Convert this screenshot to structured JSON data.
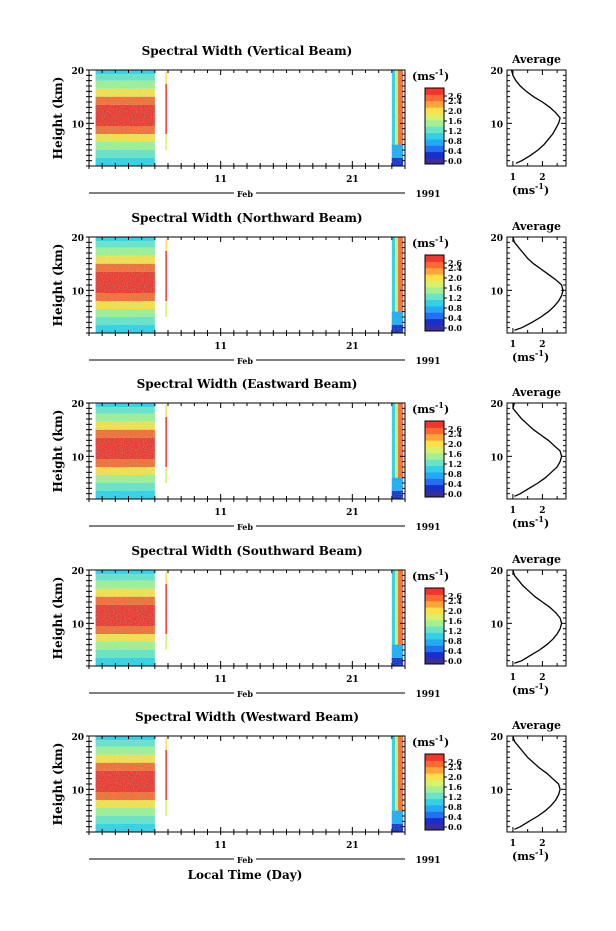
{
  "chart_data": {
    "type": "heatmap",
    "xlabel": "Local Time (Day)",
    "time_axis": {
      "month_label": "Feb",
      "year_label": "1991",
      "tick_labels": [
        "11",
        "21"
      ],
      "day_range": [
        1,
        25
      ],
      "data_blocks": [
        {
          "start_day": 1.5,
          "end_day": 6.0
        },
        {
          "start_day": 6.8,
          "end_day": 6.9
        },
        {
          "start_day": 24.0,
          "end_day": 25.0
        }
      ]
    },
    "height_axis": {
      "label": "Height (km)",
      "range": [
        2,
        20
      ],
      "tick_labels": [
        "20",
        "10"
      ]
    },
    "colorbar": {
      "unit": "(ms",
      "unit_exp": "-1",
      "unit_close": ")",
      "tick_labels": [
        "2.6",
        "2.4",
        "2.0",
        "1.6",
        "1.2",
        "0.8",
        "0.4",
        "0.0"
      ],
      "range": [
        0.0,
        2.8
      ],
      "colors": [
        "#3a2f9a",
        "#1c2ec9",
        "#2570f0",
        "#24a9f5",
        "#33d0e8",
        "#6ce3c8",
        "#a4ef95",
        "#d8f06a",
        "#fbe04a",
        "#fda53a",
        "#fb6a32",
        "#f2362e"
      ]
    },
    "panels": [
      {
        "title": "Spectral Width (Vertical Beam)",
        "profile_title": "Average",
        "profile_xlabel": "(ms",
        "profile_xtick_labels": [
          "1",
          "2"
        ],
        "profile_xrange": [
          0.8,
          2.8
        ],
        "profile_heights": [
          2.5,
          3,
          4,
          5,
          6,
          7,
          8,
          9,
          10,
          11,
          12,
          13,
          14,
          15,
          16,
          17,
          18,
          19,
          20
        ],
        "profile_values": [
          1.1,
          1.3,
          1.6,
          1.85,
          2.05,
          2.2,
          2.35,
          2.45,
          2.55,
          2.6,
          2.45,
          2.25,
          2.0,
          1.7,
          1.45,
          1.25,
          1.1,
          1.0,
          0.95
        ]
      },
      {
        "title": "Spectral Width (Northward Beam)",
        "profile_title": "Average",
        "profile_xlabel": "(ms",
        "profile_xtick_labels": [
          "1",
          "2"
        ],
        "profile_xrange": [
          0.8,
          2.8
        ],
        "profile_heights": [
          2.5,
          3,
          4,
          5,
          6,
          7,
          8,
          9,
          10,
          11,
          12,
          13,
          14,
          15,
          16,
          17,
          18,
          19,
          20
        ],
        "profile_values": [
          1.05,
          1.3,
          1.65,
          1.95,
          2.2,
          2.4,
          2.55,
          2.65,
          2.7,
          2.65,
          2.45,
          2.2,
          1.95,
          1.7,
          1.5,
          1.35,
          1.2,
          1.05,
          1.0
        ]
      },
      {
        "title": "Spectral Width (Eastward Beam)",
        "profile_title": "Average",
        "profile_xlabel": "(ms",
        "profile_xtick_labels": [
          "1",
          "2"
        ],
        "profile_xrange": [
          0.8,
          2.8
        ],
        "profile_heights": [
          2.5,
          3,
          4,
          5,
          6,
          7,
          8,
          9,
          10,
          11,
          12,
          13,
          14,
          15,
          16,
          17,
          18,
          19,
          20
        ],
        "profile_values": [
          1.05,
          1.25,
          1.55,
          1.85,
          2.1,
          2.3,
          2.5,
          2.6,
          2.65,
          2.6,
          2.4,
          2.2,
          1.95,
          1.7,
          1.5,
          1.3,
          1.15,
          1.0,
          1.05
        ]
      },
      {
        "title": "Spectral Width (Southward Beam)",
        "profile_title": "Average",
        "profile_xlabel": "(ms",
        "profile_xtick_labels": [
          "1",
          "2"
        ],
        "profile_xrange": [
          0.8,
          2.8
        ],
        "profile_heights": [
          2.5,
          3,
          4,
          5,
          6,
          7,
          8,
          9,
          10,
          11,
          12,
          13,
          14,
          15,
          16,
          17,
          18,
          19,
          20
        ],
        "profile_values": [
          1.05,
          1.3,
          1.6,
          1.9,
          2.15,
          2.35,
          2.5,
          2.6,
          2.65,
          2.6,
          2.45,
          2.25,
          2.0,
          1.75,
          1.55,
          1.35,
          1.2,
          1.05,
          1.0
        ]
      },
      {
        "title": "Spectral Width (Westward Beam)",
        "profile_title": "Average",
        "profile_xlabel": "(ms",
        "profile_xtick_labels": [
          "1",
          "2"
        ],
        "profile_xrange": [
          0.8,
          2.8
        ],
        "profile_heights": [
          2.5,
          3,
          4,
          5,
          6,
          7,
          8,
          9,
          10,
          11,
          12,
          13,
          14,
          15,
          16,
          17,
          18,
          19,
          20
        ],
        "profile_values": [
          1.05,
          1.25,
          1.55,
          1.85,
          2.1,
          2.3,
          2.45,
          2.55,
          2.6,
          2.55,
          2.35,
          2.15,
          1.9,
          1.7,
          1.5,
          1.35,
          1.2,
          1.05,
          1.0
        ]
      }
    ]
  }
}
